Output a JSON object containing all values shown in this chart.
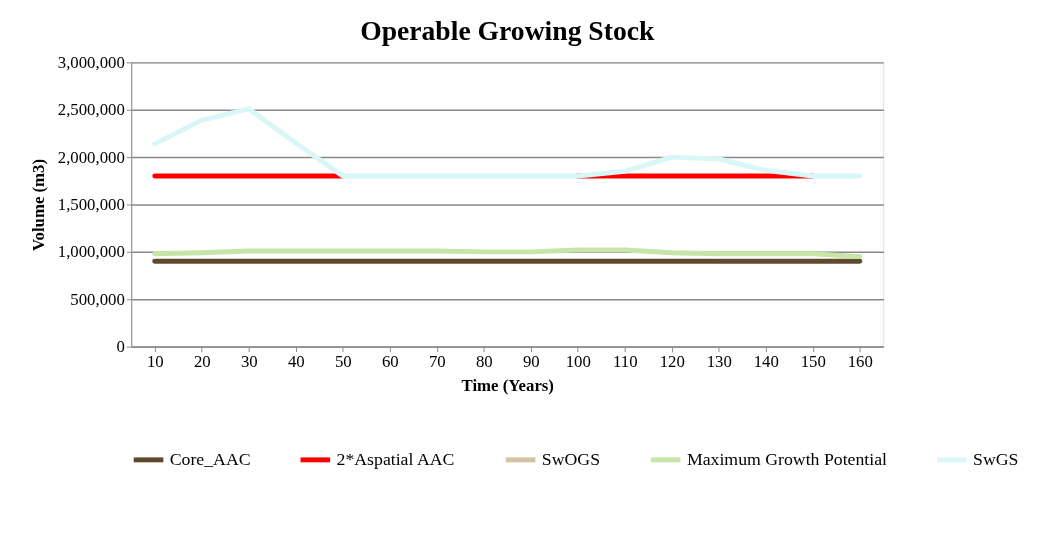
{
  "chart_data": {
    "type": "line",
    "title": "Operable Growing Stock",
    "xlabel": "Time (Years)",
    "ylabel": "Volume (m3)",
    "categories": [
      "10",
      "20",
      "30",
      "40",
      "50",
      "60",
      "70",
      "80",
      "90",
      "100",
      "110",
      "120",
      "130",
      "140",
      "150",
      "160"
    ],
    "ylim": [
      0,
      3000000
    ],
    "yticks": [
      {
        "value": 0,
        "label": "0"
      },
      {
        "value": 500000,
        "label": "500,000"
      },
      {
        "value": 1000000,
        "label": "1,000,000"
      },
      {
        "value": 1500000,
        "label": "1,500,000"
      },
      {
        "value": 2000000,
        "label": "2,000,000"
      },
      {
        "value": 2500000,
        "label": "2,500,000"
      },
      {
        "value": 3000000,
        "label": "3,000,000"
      }
    ],
    "grid": "y",
    "legend": "bottom",
    "marker": "none",
    "line_style": "solid",
    "series": [
      {
        "name": "Core_AAC",
        "color": "#604a2e",
        "values": [
          900000,
          900000,
          900000,
          900000,
          900000,
          900000,
          900000,
          900000,
          900000,
          900000,
          900000,
          900000,
          900000,
          900000,
          900000,
          900000
        ]
      },
      {
        "name": "2*Aspatial AAC",
        "color": "#ff0000",
        "values": [
          1800000,
          1800000,
          1800000,
          1800000,
          1800000,
          null,
          null,
          null,
          null,
          1800000,
          1800000,
          1800000,
          1800000,
          1800000,
          1800000,
          null
        ]
      },
      {
        "name": "SwOGS",
        "color": "#d3c3a3",
        "values": [
          null,
          null,
          null,
          null,
          null,
          null,
          null,
          null,
          null,
          null,
          null,
          null,
          null,
          null,
          null,
          null
        ]
      },
      {
        "name": "Maximum Growth Potential",
        "color": "#c6e5a6",
        "values": [
          980000,
          990000,
          1010000,
          1010000,
          1010000,
          1010000,
          1010000,
          1000000,
          1000000,
          1020000,
          1020000,
          990000,
          980000,
          980000,
          980000,
          950000
        ]
      },
      {
        "name": "SwGS",
        "color": "#d9f7f7",
        "values": [
          2140000,
          2390000,
          2510000,
          2150000,
          1800000,
          1800000,
          1800000,
          1800000,
          1800000,
          1800000,
          1850000,
          2000000,
          1980000,
          1860000,
          1800000,
          1800000
        ]
      }
    ]
  }
}
